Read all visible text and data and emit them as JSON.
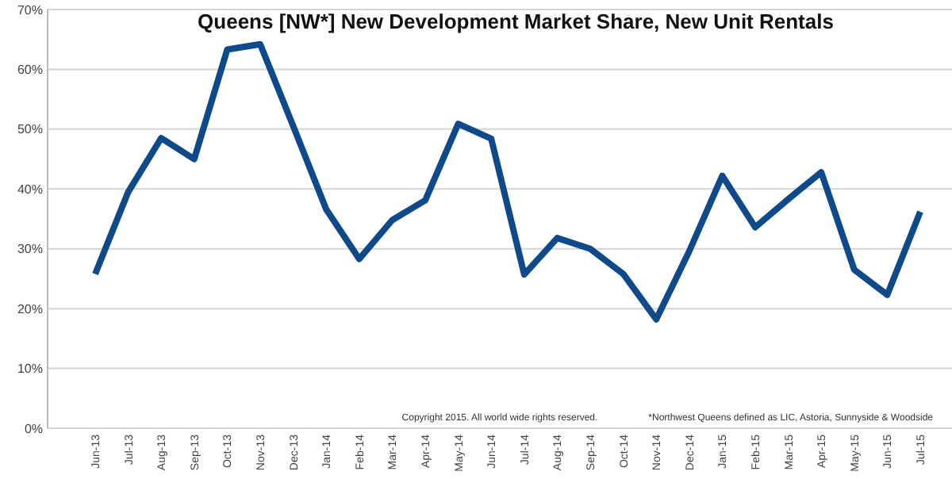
{
  "chart_data": {
    "type": "line",
    "title": "Queens [NW*] New Development Market Share, New Unit Rentals",
    "categories": [
      "Jun-13",
      "Jul-13",
      "Aug-13",
      "Sep-13",
      "Oct-13",
      "Nov-13",
      "Dec-13",
      "Jan-14",
      "Feb-14",
      "Mar-14",
      "Apr-14",
      "May-14",
      "Jun-14",
      "Jul-14",
      "Aug-14",
      "Sep-14",
      "Oct-14",
      "Nov-14",
      "Dec-14",
      "Jan-15",
      "Feb-15",
      "Mar-15",
      "Apr-15",
      "May-15",
      "Jun-15",
      "Jul-15"
    ],
    "series": [
      {
        "color": "#0e4a8a",
        "values": [
          25.8,
          39.5,
          48.5,
          45,
          63.3,
          64.2,
          50.5,
          36.6,
          28.3,
          34.8,
          38.1,
          50.9,
          48.4,
          25.7,
          31.8,
          30,
          25.8,
          18.2,
          29.6,
          42.2,
          33.6,
          38.3,
          42.8,
          26.5,
          22.3,
          36.2
        ]
      }
    ],
    "ylim": [
      0,
      70
    ],
    "yticks": [
      {
        "value": 0,
        "label": "0%"
      },
      {
        "value": 10,
        "label": "10%"
      },
      {
        "value": 20,
        "label": "20%"
      },
      {
        "value": 30,
        "label": "30%"
      },
      {
        "value": 40,
        "label": "40%"
      },
      {
        "value": 50,
        "label": "50%"
      },
      {
        "value": 60,
        "label": "60%"
      },
      {
        "value": 70,
        "label": "70%"
      }
    ],
    "grid": "y",
    "marker": "none",
    "line_style": "solid",
    "annotations": [
      "Copyright 2015. All world wide rights reserved.",
      "*Northwest Queens defined as LIC, Astoria, Sunnyside & Woodside"
    ]
  }
}
